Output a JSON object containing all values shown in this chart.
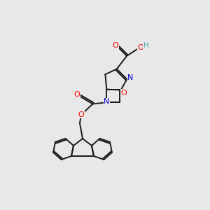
{
  "bg_color": "#e8e8e8",
  "bond_color": "#1a1a1a",
  "atom_colors": {
    "O": "#ff0000",
    "N": "#0000cd",
    "H": "#5aacac",
    "C": "#1a1a1a"
  },
  "figsize": [
    3.0,
    3.0
  ],
  "dpi": 100
}
